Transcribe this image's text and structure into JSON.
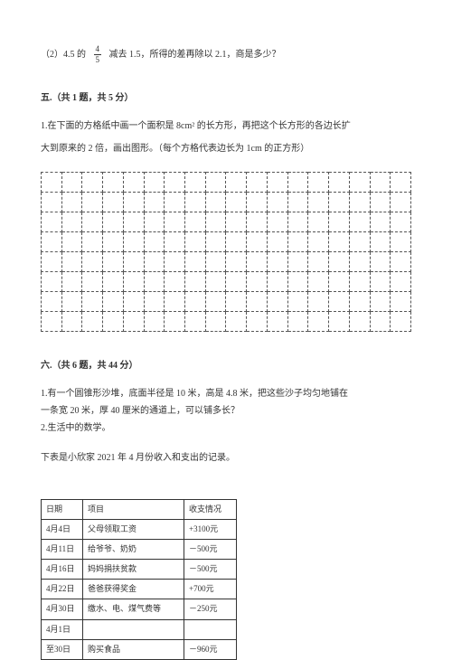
{
  "question2": {
    "prefix": "（2）4.5 的",
    "frac_num": "4",
    "frac_den": "5",
    "suffix": "减去 1.5，所得的差再除以 2.1，商是多少？"
  },
  "section5": {
    "heading": "五.（共 1 题，共 5 分）",
    "line1": "1.在下面的方格纸中画一个面积是 8cm² 的长方形，再把这个长方形的各边长扩",
    "line2": "大到原来的 2 倍，画出图形。（每个方格代表边长为 1cm 的正方形）",
    "grid": {
      "rows": 8,
      "cols": 18
    }
  },
  "section6": {
    "heading": "六.（共 6 题，共 44 分）",
    "q1a": "1.有一个圆锥形沙堆，底面半径是 10 米，高是 4.8 米，把这些沙子均匀地铺在",
    "q1b": "一条宽 20 米，厚 40 厘米的通道上，可以铺多长？",
    "q2": "2.生活中的数学。",
    "intro": "下表是小欣家 2021 年 4 月份收入和支出的记录。",
    "table": {
      "headers": [
        "日期",
        "项目",
        "收支情况"
      ],
      "rows": [
        [
          "4月4日",
          "父母领取工资",
          "+3100元"
        ],
        [
          "4月11日",
          "给爷爷、奶奶",
          "－500元"
        ],
        [
          "4月16日",
          "妈妈捐扶贫款",
          "－500元"
        ],
        [
          "4月22日",
          "爸爸获得奖金",
          "+700元"
        ],
        [
          "4月30日",
          "缴水、电、煤气费等",
          "－250元"
        ],
        [
          "4月1日",
          "",
          ""
        ],
        [
          "至30日",
          "购买食品",
          "－960元"
        ]
      ]
    }
  }
}
